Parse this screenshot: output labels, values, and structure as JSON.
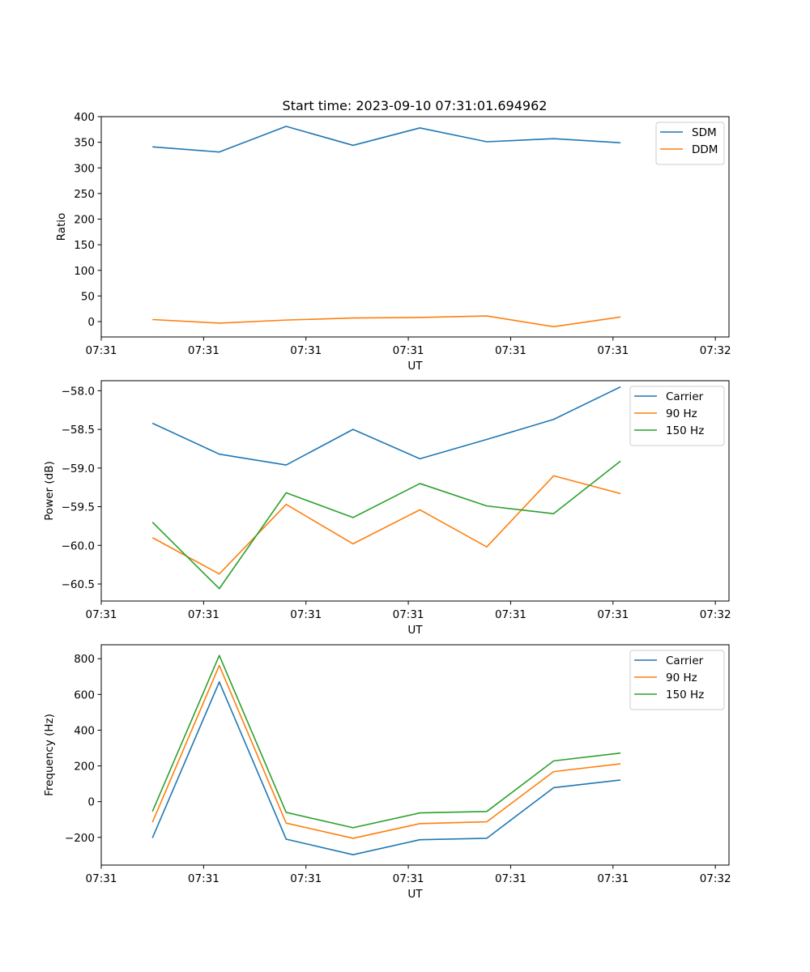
{
  "title": "Start time: 2023-09-10 07:31:01.694962",
  "chart_data": [
    {
      "type": "line",
      "title": "Start time: 2023-09-10 07:31:01.694962",
      "xlabel": "UT",
      "ylabel": "Ratio",
      "xlim": [
        0,
        9.2
      ],
      "ylim": [
        -30,
        400
      ],
      "x_ticks": [
        0.0,
        1.5,
        3.0,
        4.5,
        6.0,
        7.5,
        9.0
      ],
      "x_tick_labels": [
        "07:31",
        "07:31",
        "07:31",
        "07:31",
        "07:31",
        "07:31",
        "07:32"
      ],
      "y_ticks": [
        0,
        50,
        100,
        150,
        200,
        250,
        300,
        350,
        400
      ],
      "y_tick_labels": [
        "0",
        "50",
        "100",
        "150",
        "200",
        "250",
        "300",
        "350",
        "400"
      ],
      "x": [
        0.75,
        1.73,
        2.71,
        3.69,
        4.67,
        5.65,
        6.63,
        7.61
      ],
      "legend": "top-right",
      "series": [
        {
          "name": "SDM",
          "color": "#1f77b4",
          "values": [
            341,
            331,
            381,
            344,
            378,
            351,
            357,
            349
          ]
        },
        {
          "name": "DDM",
          "color": "#ff7f0e",
          "values": [
            4,
            -3,
            3,
            7,
            8,
            11,
            -10,
            9
          ]
        }
      ]
    },
    {
      "type": "line",
      "title": "",
      "xlabel": "UT",
      "ylabel": "Power (dB)",
      "xlim": [
        0,
        9.2
      ],
      "ylim": [
        -60.72,
        -57.87
      ],
      "x_ticks": [
        0.0,
        1.5,
        3.0,
        4.5,
        6.0,
        7.5,
        9.0
      ],
      "x_tick_labels": [
        "07:31",
        "07:31",
        "07:31",
        "07:31",
        "07:31",
        "07:31",
        "07:32"
      ],
      "y_ticks": [
        -60.5,
        -60.0,
        -59.5,
        -59.0,
        -58.5,
        -58.0
      ],
      "y_tick_labels": [
        "−60.5",
        "−60.0",
        "−59.5",
        "−59.0",
        "−58.5",
        "−58.0"
      ],
      "x": [
        0.75,
        1.73,
        2.71,
        3.69,
        4.67,
        5.65,
        6.63,
        7.61
      ],
      "legend": "top-right",
      "series": [
        {
          "name": "Carrier",
          "color": "#1f77b4",
          "values": [
            -58.42,
            -58.82,
            -58.96,
            -58.5,
            -58.88,
            -58.63,
            -58.37,
            -57.95
          ]
        },
        {
          "name": "90 Hz",
          "color": "#ff7f0e",
          "values": [
            -59.9,
            -60.37,
            -59.47,
            -59.98,
            -59.54,
            -60.02,
            -59.1,
            -59.33
          ]
        },
        {
          "name": "150 Hz",
          "color": "#2ca02c",
          "values": [
            -59.7,
            -60.56,
            -59.32,
            -59.64,
            -59.2,
            -59.49,
            -59.59,
            -58.91
          ]
        }
      ]
    },
    {
      "type": "line",
      "title": "",
      "xlabel": "UT",
      "ylabel": "Frequency (Hz)",
      "xlim": [
        0,
        9.2
      ],
      "ylim": [
        -355,
        878
      ],
      "x_ticks": [
        0.0,
        1.5,
        3.0,
        4.5,
        6.0,
        7.5,
        9.0
      ],
      "x_tick_labels": [
        "07:31",
        "07:31",
        "07:31",
        "07:31",
        "07:31",
        "07:31",
        "07:32"
      ],
      "y_ticks": [
        -200,
        0,
        200,
        400,
        600,
        800
      ],
      "y_tick_labels": [
        "−200",
        "0",
        "200",
        "400",
        "600",
        "800"
      ],
      "x": [
        0.75,
        1.73,
        2.71,
        3.69,
        4.67,
        5.65,
        6.63,
        7.61
      ],
      "legend": "top-right",
      "series": [
        {
          "name": "Carrier",
          "color": "#1f77b4",
          "values": [
            -203,
            670,
            -210,
            -297,
            -213,
            -205,
            78,
            121
          ]
        },
        {
          "name": "90 Hz",
          "color": "#ff7f0e",
          "values": [
            -115,
            762,
            -120,
            -205,
            -123,
            -113,
            168,
            212
          ]
        },
        {
          "name": "150 Hz",
          "color": "#2ca02c",
          "values": [
            -55,
            818,
            -60,
            -146,
            -63,
            -55,
            228,
            272
          ]
        }
      ]
    }
  ]
}
